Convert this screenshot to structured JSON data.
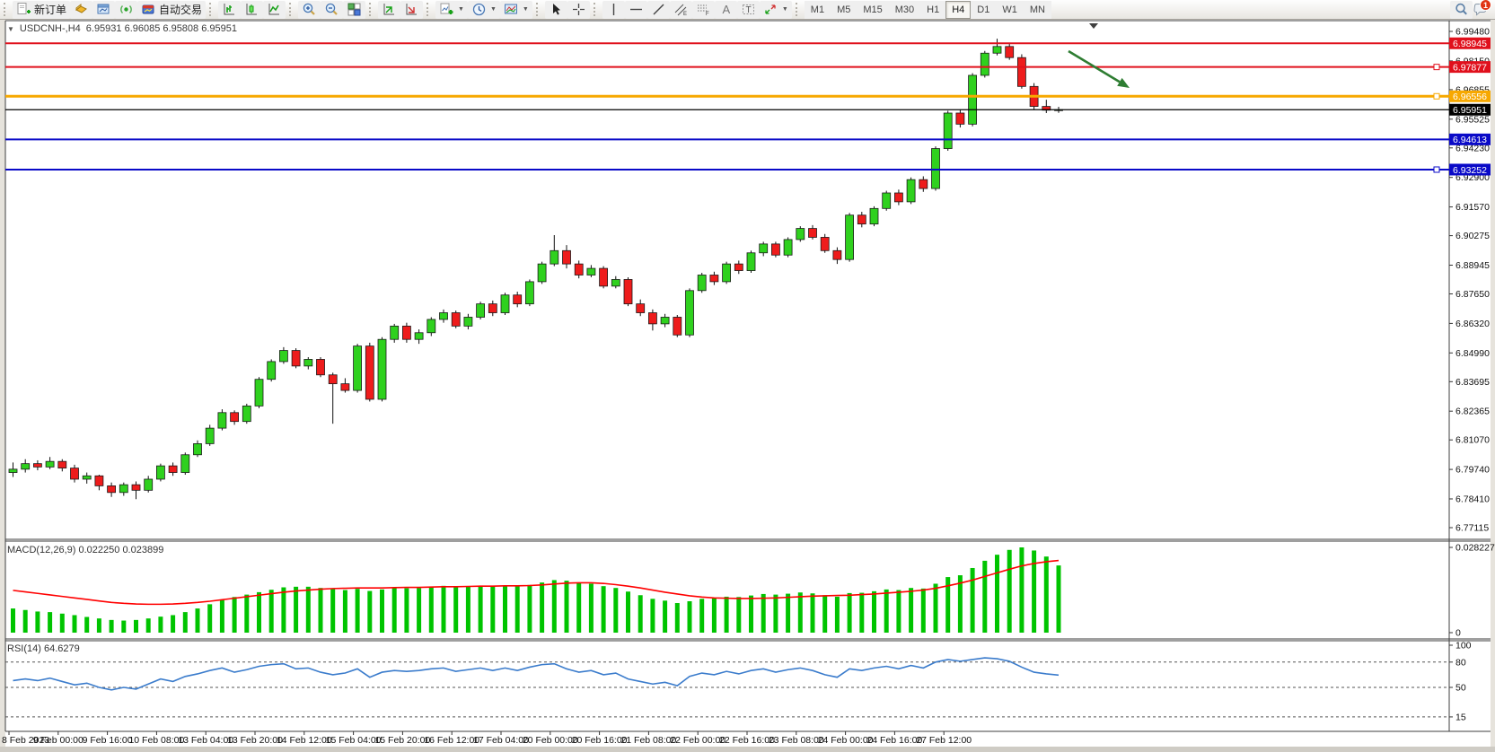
{
  "toolbar": {
    "new_order_label": "新订单",
    "auto_trading_label": "自动交易",
    "timeframes": [
      "M1",
      "M5",
      "M15",
      "M30",
      "H1",
      "H4",
      "D1",
      "W1",
      "MN"
    ],
    "active_timeframe": "H4",
    "notification_badge": "1",
    "icons": [
      "new-order-icon",
      "market-watch-icon",
      "charts-window-icon",
      "signals-icon",
      "auto-trading-icon",
      "bar-chart-icon",
      "candlestick-chart-icon",
      "line-chart-icon",
      "zoom-in-icon",
      "zoom-out-icon",
      "tile-windows-icon",
      "indicators-window-icon",
      "objects-window-icon",
      "add-indicator-icon",
      "period-icon",
      "template-icon",
      "cursor-icon",
      "crosshair-icon",
      "vertical-line-icon",
      "horizontal-line-icon",
      "trendline-icon",
      "equidistant-channel-icon",
      "fibonacci-icon",
      "text-icon",
      "text-label-icon",
      "arrows-icon",
      "search-icon",
      "chat-icon"
    ]
  },
  "window": {
    "symbol_title": "USDCNH-,H4",
    "ohlc_values": "6.95931 6.96085 6.95808 6.95951",
    "collapse_arrow": "▼"
  },
  "price_axis": {
    "ticks": [
      "6.99480",
      "6.98150",
      "6.96855",
      "6.95525",
      "6.94230",
      "6.92900",
      "6.91570",
      "6.90275",
      "6.88945",
      "6.87650",
      "6.86320",
      "6.84990",
      "6.83695",
      "6.82365",
      "6.81070",
      "6.79740",
      "6.78410",
      "6.77115"
    ]
  },
  "time_axis": {
    "labels": [
      "8 Feb 2023",
      "9 Feb 00:00",
      "9 Feb 16:00",
      "10 Feb 08:00",
      "13 Feb 04:00",
      "13 Feb 20:00",
      "14 Feb 12:00",
      "15 Feb 04:00",
      "15 Feb 20:00",
      "16 Feb 12:00",
      "17 Feb 04:00",
      "20 Feb 00:00",
      "20 Feb 16:00",
      "21 Feb 08:00",
      "22 Feb 00:00",
      "22 Feb 16:00",
      "23 Feb 08:00",
      "24 Feb 00:00",
      "24 Feb 16:00",
      "27 Feb 12:00"
    ]
  },
  "hlines": [
    {
      "name": "resistance-line-1",
      "price": 6.98945,
      "label": "6.98945",
      "color": "#e0101c",
      "width": 2,
      "handle": false
    },
    {
      "name": "resistance-line-2",
      "price": 6.97877,
      "label": "6.97877",
      "color": "#e0101c",
      "width": 2,
      "handle": true
    },
    {
      "name": "pivot-line",
      "price": 6.96556,
      "label": "6.96556",
      "color": "#f7a800",
      "width": 3,
      "handle": true
    },
    {
      "name": "current-price-line",
      "price": 6.95951,
      "label": "6.95951",
      "color": "#000000",
      "width": 1.2,
      "handle": false
    },
    {
      "name": "support-line-1",
      "price": 6.94613,
      "label": "6.94613",
      "color": "#0a0ac8",
      "width": 2,
      "handle": false
    },
    {
      "name": "support-line-2",
      "price": 6.93252,
      "label": "6.93252",
      "color": "#0a0ac8",
      "width": 2,
      "handle": true
    }
  ],
  "chart_data": [
    {
      "type": "candlestick",
      "title": "USDCNH-,H4",
      "ohlc_display": "6.95931 6.96085 6.95808 6.95951",
      "ylim": [
        6.77115,
        6.9948
      ],
      "up_color": "#2fd11e",
      "down_color": "#ee1c1c",
      "candles": [
        [
          6.796,
          6.8005,
          6.794,
          6.7975
        ],
        [
          6.7975,
          6.802,
          6.796,
          6.8
        ],
        [
          6.8,
          6.8015,
          6.797,
          6.7985
        ],
        [
          6.7985,
          6.803,
          6.7975,
          6.801
        ],
        [
          6.801,
          6.802,
          6.7965,
          6.798
        ],
        [
          6.798,
          6.7995,
          6.7915,
          6.793
        ],
        [
          6.793,
          6.796,
          6.791,
          6.7945
        ],
        [
          6.7945,
          6.795,
          6.788,
          6.79
        ],
        [
          6.79,
          6.7915,
          6.785,
          6.787
        ],
        [
          6.787,
          6.7915,
          6.7855,
          6.7905
        ],
        [
          6.7905,
          6.792,
          6.784,
          6.788
        ],
        [
          6.788,
          6.7945,
          6.787,
          6.793
        ],
        [
          6.793,
          6.8,
          6.792,
          6.799
        ],
        [
          6.799,
          6.8005,
          6.7945,
          6.796
        ],
        [
          6.796,
          6.805,
          6.795,
          6.804
        ],
        [
          6.804,
          6.8105,
          6.803,
          6.809
        ],
        [
          6.809,
          6.8175,
          6.808,
          6.816
        ],
        [
          6.816,
          6.8245,
          6.815,
          6.823
        ],
        [
          6.823,
          6.824,
          6.8175,
          6.819
        ],
        [
          6.819,
          6.827,
          6.818,
          6.826
        ],
        [
          6.826,
          6.839,
          6.825,
          6.838
        ],
        [
          6.838,
          6.847,
          6.837,
          6.846
        ],
        [
          6.846,
          6.8525,
          6.845,
          6.851
        ],
        [
          6.851,
          6.852,
          6.843,
          6.844
        ],
        [
          6.844,
          6.848,
          6.8425,
          6.847
        ],
        [
          6.847,
          6.848,
          6.839,
          6.84
        ],
        [
          6.84,
          6.841,
          6.818,
          6.836
        ],
        [
          6.836,
          6.8385,
          6.832,
          6.833
        ],
        [
          6.833,
          6.854,
          6.832,
          6.853
        ],
        [
          6.853,
          6.8545,
          6.828,
          6.829
        ],
        [
          6.829,
          6.857,
          6.828,
          6.856
        ],
        [
          6.856,
          6.863,
          6.8545,
          6.862
        ],
        [
          6.862,
          6.8635,
          6.8545,
          6.856
        ],
        [
          6.856,
          6.8605,
          6.854,
          6.859
        ],
        [
          6.859,
          6.866,
          6.8575,
          6.865
        ],
        [
          6.865,
          6.8695,
          6.8635,
          6.868
        ],
        [
          6.868,
          6.869,
          6.861,
          6.862
        ],
        [
          6.862,
          6.8675,
          6.8605,
          6.866
        ],
        [
          6.866,
          6.873,
          6.865,
          6.872
        ],
        [
          6.872,
          6.8735,
          6.8665,
          6.868
        ],
        [
          6.868,
          6.877,
          6.867,
          6.876
        ],
        [
          6.876,
          6.8775,
          6.8705,
          6.872
        ],
        [
          6.872,
          6.883,
          6.871,
          6.882
        ],
        [
          6.882,
          6.891,
          6.881,
          6.89
        ],
        [
          6.89,
          6.903,
          6.889,
          6.896
        ],
        [
          6.896,
          6.8985,
          6.888,
          6.89
        ],
        [
          6.89,
          6.8915,
          6.8835,
          6.885
        ],
        [
          6.885,
          6.8895,
          6.884,
          6.888
        ],
        [
          6.888,
          6.889,
          6.879,
          6.88
        ],
        [
          6.88,
          6.8845,
          6.879,
          6.883
        ],
        [
          6.883,
          6.884,
          6.871,
          6.872
        ],
        [
          6.872,
          6.874,
          6.8665,
          6.868
        ],
        [
          6.868,
          6.8695,
          6.86,
          6.863
        ],
        [
          6.863,
          6.8675,
          6.8615,
          6.866
        ],
        [
          6.866,
          6.867,
          6.857,
          6.858
        ],
        [
          6.858,
          6.879,
          6.857,
          6.878
        ],
        [
          6.878,
          6.886,
          6.877,
          6.885
        ],
        [
          6.885,
          6.8865,
          6.8805,
          6.882
        ],
        [
          6.882,
          6.891,
          6.881,
          6.89
        ],
        [
          6.89,
          6.8915,
          6.8855,
          6.887
        ],
        [
          6.887,
          6.896,
          6.886,
          6.895
        ],
        [
          6.895,
          6.9,
          6.8935,
          6.899
        ],
        [
          6.899,
          6.9,
          6.893,
          6.894
        ],
        [
          6.894,
          6.902,
          6.893,
          6.901
        ],
        [
          6.901,
          6.907,
          6.9,
          6.906
        ],
        [
          6.906,
          6.9075,
          6.901,
          6.902
        ],
        [
          6.902,
          6.9035,
          6.895,
          6.896
        ],
        [
          6.896,
          6.8975,
          6.89,
          6.892
        ],
        [
          6.892,
          6.913,
          6.891,
          6.912
        ],
        [
          6.912,
          6.9135,
          6.9065,
          6.908
        ],
        [
          6.908,
          6.916,
          6.907,
          6.915
        ],
        [
          6.915,
          6.923,
          6.914,
          6.922
        ],
        [
          6.922,
          6.9235,
          6.9165,
          6.918
        ],
        [
          6.918,
          6.929,
          6.917,
          6.928
        ],
        [
          6.928,
          6.9295,
          6.9225,
          6.924
        ],
        [
          6.924,
          6.943,
          6.923,
          6.942
        ],
        [
          6.942,
          6.959,
          6.941,
          6.958
        ],
        [
          6.958,
          6.9595,
          6.9515,
          6.953
        ],
        [
          6.953,
          6.976,
          6.952,
          6.975
        ],
        [
          6.975,
          6.986,
          6.974,
          6.985
        ],
        [
          6.985,
          6.9915,
          6.984,
          6.988
        ],
        [
          6.988,
          6.9895,
          6.982,
          6.983
        ],
        [
          6.983,
          6.9845,
          6.969,
          6.97
        ],
        [
          6.97,
          6.9715,
          6.9595,
          6.961
        ],
        [
          6.961,
          6.964,
          6.958,
          6.9593
        ],
        [
          6.95931,
          6.96085,
          6.95808,
          6.95951
        ]
      ]
    },
    {
      "type": "bar",
      "title": "MACD(12,26,9)",
      "value_main": "0.022250",
      "value_signal": "0.023899",
      "ylim": [
        0,
        0.028227
      ],
      "axis_labels": [
        "0.028227",
        "0"
      ],
      "histogram_color": "#00c400",
      "signal_color": "#ff0000",
      "histogram": [
        0.008,
        0.0075,
        0.007,
        0.0068,
        0.0063,
        0.0058,
        0.0052,
        0.0047,
        0.0042,
        0.004,
        0.0042,
        0.0047,
        0.0053,
        0.0058,
        0.0068,
        0.008,
        0.0094,
        0.0108,
        0.0118,
        0.0126,
        0.0134,
        0.0142,
        0.015,
        0.0152,
        0.0152,
        0.0148,
        0.0144,
        0.0141,
        0.0145,
        0.0138,
        0.0143,
        0.0148,
        0.0147,
        0.0148,
        0.0152,
        0.0155,
        0.0151,
        0.0152,
        0.0156,
        0.0153,
        0.0156,
        0.0153,
        0.0158,
        0.0166,
        0.0174,
        0.0172,
        0.0166,
        0.0162,
        0.0154,
        0.0148,
        0.0136,
        0.0124,
        0.0112,
        0.0106,
        0.0098,
        0.0104,
        0.0112,
        0.0113,
        0.0119,
        0.0118,
        0.0123,
        0.0128,
        0.0126,
        0.0129,
        0.0133,
        0.013,
        0.0124,
        0.0119,
        0.0131,
        0.0132,
        0.0137,
        0.0143,
        0.0141,
        0.0148,
        0.0146,
        0.0162,
        0.0184,
        0.019,
        0.0214,
        0.0238,
        0.0258,
        0.0274,
        0.028227,
        0.0272,
        0.0252,
        0.02225
      ],
      "signal": [
        0.014,
        0.0135,
        0.013,
        0.0125,
        0.012,
        0.0115,
        0.011,
        0.0105,
        0.01,
        0.0097,
        0.0095,
        0.0094,
        0.0094,
        0.0095,
        0.0097,
        0.01,
        0.0104,
        0.0109,
        0.0114,
        0.0119,
        0.0124,
        0.0129,
        0.0134,
        0.0138,
        0.0141,
        0.0144,
        0.0146,
        0.0147,
        0.0148,
        0.0148,
        0.0148,
        0.0149,
        0.015,
        0.015,
        0.0151,
        0.0152,
        0.0152,
        0.0153,
        0.0154,
        0.0154,
        0.0155,
        0.0155,
        0.0156,
        0.0158,
        0.0161,
        0.0164,
        0.0165,
        0.0165,
        0.0163,
        0.0159,
        0.0154,
        0.0148,
        0.0141,
        0.0134,
        0.0128,
        0.0122,
        0.0118,
        0.0115,
        0.0114,
        0.0113,
        0.0113,
        0.0114,
        0.0115,
        0.0117,
        0.0119,
        0.0121,
        0.0122,
        0.0123,
        0.0124,
        0.0126,
        0.0128,
        0.0131,
        0.0134,
        0.0137,
        0.0141,
        0.0147,
        0.0155,
        0.0164,
        0.0174,
        0.0186,
        0.0198,
        0.021,
        0.0221,
        0.0229,
        0.0235,
        0.023899
      ]
    },
    {
      "type": "line",
      "title": "RSI(14)",
      "value_display": "64.6279",
      "ylim": [
        0,
        100
      ],
      "levels": [
        80,
        50,
        15
      ],
      "axis_labels": [
        "100",
        "80",
        "50",
        "15"
      ],
      "line_color": "#3b7ccc",
      "values": [
        58,
        60,
        58,
        61,
        57,
        53,
        55,
        50,
        47,
        50,
        48,
        54,
        60,
        57,
        63,
        66,
        70,
        73,
        68,
        71,
        75,
        77,
        78,
        72,
        73,
        68,
        65,
        67,
        72,
        62,
        68,
        70,
        69,
        70,
        72,
        73,
        69,
        71,
        73,
        70,
        73,
        70,
        74,
        77,
        78,
        72,
        68,
        70,
        65,
        67,
        60,
        57,
        54,
        56,
        52,
        63,
        67,
        65,
        69,
        66,
        70,
        72,
        68,
        71,
        73,
        70,
        65,
        62,
        72,
        70,
        73,
        75,
        72,
        76,
        73,
        80,
        83,
        81,
        83,
        85,
        84,
        81,
        74,
        68,
        66,
        64.6
      ]
    }
  ],
  "annotations": {
    "trend_arrow_color": "#2e7d32",
    "shift_marker": "▼"
  }
}
